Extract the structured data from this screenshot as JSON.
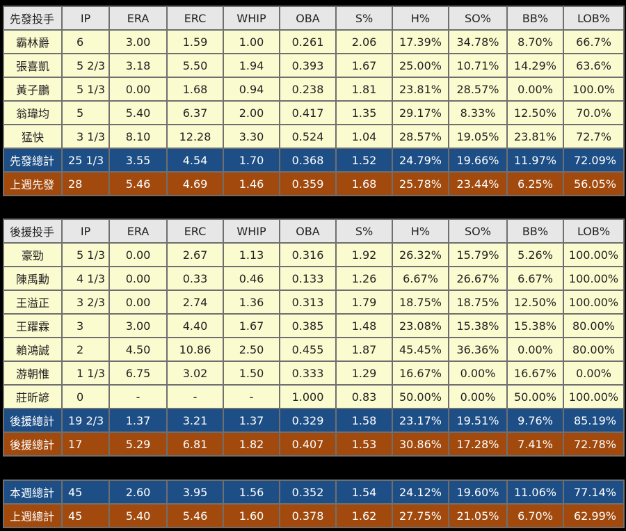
{
  "columns": [
    "IP",
    "ERA",
    "ERC",
    "WHIP",
    "OBA",
    "S%",
    "H%",
    "SO%",
    "BB%",
    "LOB%"
  ],
  "starters": {
    "header": "先發投手",
    "rows": [
      {
        "name": "霸林爵",
        "vals": [
          "6",
          "3.00",
          "1.59",
          "1.00",
          "0.261",
          "2.06",
          "17.39%",
          "34.78%",
          "8.70%",
          "66.7%"
        ]
      },
      {
        "name": "張喜凱",
        "vals": [
          "5 2/3",
          "3.18",
          "5.50",
          "1.94",
          "0.393",
          "1.67",
          "25.00%",
          "10.71%",
          "14.29%",
          "63.6%"
        ]
      },
      {
        "name": "黃子鵬",
        "vals": [
          "5 1/3",
          "0.00",
          "1.68",
          "0.94",
          "0.238",
          "1.81",
          "23.81%",
          "28.57%",
          "0.00%",
          "100.0%"
        ]
      },
      {
        "name": "翁瑋均",
        "vals": [
          "5",
          "5.40",
          "6.37",
          "2.00",
          "0.417",
          "1.35",
          "29.17%",
          "8.33%",
          "12.50%",
          "70.0%"
        ]
      },
      {
        "name": "猛快",
        "vals": [
          "3 1/3",
          "8.10",
          "12.28",
          "3.30",
          "0.524",
          "1.04",
          "28.57%",
          "19.05%",
          "23.81%",
          "72.7%"
        ]
      }
    ],
    "total": {
      "name": "先發總計",
      "vals": [
        "25 1/3",
        "3.55",
        "4.54",
        "1.70",
        "0.368",
        "1.52",
        "24.79%",
        "19.66%",
        "11.97%",
        "72.09%"
      ]
    },
    "last_week": {
      "name": "上週先發",
      "vals": [
        "28",
        "5.46",
        "4.69",
        "1.46",
        "0.359",
        "1.68",
        "25.78%",
        "23.44%",
        "6.25%",
        "56.05%"
      ]
    }
  },
  "relievers": {
    "header": "後援投手",
    "rows": [
      {
        "name": "豪勁",
        "vals": [
          "5 1/3",
          "0.00",
          "2.67",
          "1.13",
          "0.316",
          "1.92",
          "26.32%",
          "15.79%",
          "5.26%",
          "100.00%"
        ]
      },
      {
        "name": "陳禹勳",
        "vals": [
          "4 1/3",
          "0.00",
          "0.33",
          "0.46",
          "0.133",
          "1.26",
          "6.67%",
          "26.67%",
          "6.67%",
          "100.00%"
        ]
      },
      {
        "name": "王溢正",
        "vals": [
          "3 2/3",
          "0.00",
          "2.74",
          "1.36",
          "0.313",
          "1.79",
          "18.75%",
          "18.75%",
          "12.50%",
          "100.00%"
        ]
      },
      {
        "name": "王躍霖",
        "vals": [
          "3",
          "3.00",
          "4.40",
          "1.67",
          "0.385",
          "1.48",
          "23.08%",
          "15.38%",
          "15.38%",
          "80.00%"
        ]
      },
      {
        "name": "賴鴻誠",
        "vals": [
          "2",
          "4.50",
          "10.86",
          "2.50",
          "0.455",
          "1.87",
          "45.45%",
          "36.36%",
          "0.00%",
          "80.00%"
        ]
      },
      {
        "name": "游朝惟",
        "vals": [
          "1 1/3",
          "6.75",
          "3.02",
          "1.50",
          "0.333",
          "1.29",
          "16.67%",
          "0.00%",
          "16.67%",
          "0.00%"
        ]
      },
      {
        "name": "莊昕諺",
        "vals": [
          "0",
          "-",
          "-",
          "-",
          "1.000",
          "0.83",
          "50.00%",
          "0.00%",
          "50.00%",
          "100.00%"
        ]
      }
    ],
    "total": {
      "name": "後援總計",
      "vals": [
        "19 2/3",
        "1.37",
        "3.21",
        "1.37",
        "0.329",
        "1.58",
        "23.17%",
        "19.51%",
        "9.76%",
        "85.19%"
      ]
    },
    "last_week": {
      "name": "後援總計",
      "vals": [
        "17",
        "5.29",
        "6.81",
        "1.82",
        "0.407",
        "1.53",
        "30.86%",
        "17.28%",
        "7.41%",
        "72.78%"
      ]
    }
  },
  "summary": {
    "this_week": {
      "name": "本週總計",
      "vals": [
        "45",
        "2.60",
        "3.95",
        "1.56",
        "0.352",
        "1.54",
        "24.12%",
        "19.60%",
        "11.06%",
        "77.14%"
      ]
    },
    "last_week": {
      "name": "上週總計",
      "vals": [
        "45",
        "5.40",
        "5.46",
        "1.60",
        "0.378",
        "1.62",
        "27.75%",
        "21.05%",
        "6.70%",
        "62.99%"
      ]
    }
  },
  "colors": {
    "player_bg": "#fbfbd0",
    "total_blue": "#1d4f86",
    "total_orange": "#a24a0d",
    "header_bg": "#e7e7e7"
  }
}
